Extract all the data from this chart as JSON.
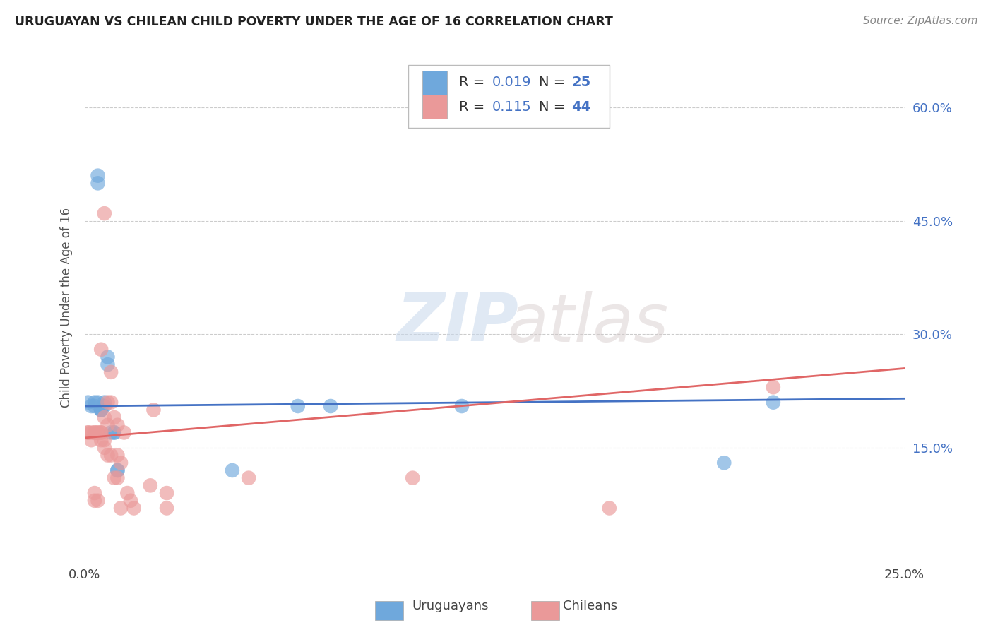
{
  "title": "URUGUAYAN VS CHILEAN CHILD POVERTY UNDER THE AGE OF 16 CORRELATION CHART",
  "source": "Source: ZipAtlas.com",
  "ylabel": "Child Poverty Under the Age of 16",
  "xlim": [
    0.0,
    0.25
  ],
  "ylim": [
    0.0,
    0.67
  ],
  "xticks": [
    0.0,
    0.05,
    0.1,
    0.15,
    0.2,
    0.25
  ],
  "xtick_labels": [
    "0.0%",
    "",
    "",
    "",
    "",
    "25.0%"
  ],
  "yticks_right": [
    0.15,
    0.3,
    0.45,
    0.6
  ],
  "ytick_labels_right": [
    "15.0%",
    "30.0%",
    "45.0%",
    "60.0%"
  ],
  "uruguayan_color": "#6fa8dc",
  "chilean_color": "#ea9999",
  "uruguayan_line_color": "#4472c4",
  "chilean_line_color": "#e06666",
  "legend_R_uruguayan": "0.019",
  "legend_N_uruguayan": "25",
  "legend_R_chilean": "0.115",
  "legend_N_chilean": "44",
  "uruguayan_x": [
    0.001,
    0.002,
    0.003,
    0.003,
    0.004,
    0.004,
    0.004,
    0.005,
    0.005,
    0.005,
    0.006,
    0.006,
    0.007,
    0.007,
    0.008,
    0.009,
    0.009,
    0.01,
    0.01,
    0.045,
    0.065,
    0.075,
    0.115,
    0.195,
    0.21
  ],
  "uruguayan_y": [
    0.21,
    0.205,
    0.205,
    0.21,
    0.21,
    0.5,
    0.51,
    0.2,
    0.2,
    0.2,
    0.205,
    0.21,
    0.26,
    0.27,
    0.17,
    0.17,
    0.17,
    0.12,
    0.12,
    0.12,
    0.205,
    0.205,
    0.205,
    0.13,
    0.21
  ],
  "chilean_x": [
    0.001,
    0.001,
    0.002,
    0.002,
    0.003,
    0.003,
    0.003,
    0.003,
    0.004,
    0.004,
    0.004,
    0.005,
    0.005,
    0.005,
    0.005,
    0.006,
    0.006,
    0.006,
    0.006,
    0.007,
    0.007,
    0.007,
    0.008,
    0.008,
    0.008,
    0.009,
    0.009,
    0.01,
    0.01,
    0.01,
    0.011,
    0.011,
    0.012,
    0.013,
    0.014,
    0.015,
    0.02,
    0.021,
    0.025,
    0.025,
    0.05,
    0.1,
    0.16,
    0.21
  ],
  "chilean_y": [
    0.17,
    0.17,
    0.17,
    0.16,
    0.17,
    0.17,
    0.09,
    0.08,
    0.08,
    0.17,
    0.17,
    0.28,
    0.17,
    0.17,
    0.16,
    0.19,
    0.46,
    0.16,
    0.15,
    0.21,
    0.18,
    0.14,
    0.25,
    0.21,
    0.14,
    0.11,
    0.19,
    0.14,
    0.11,
    0.18,
    0.13,
    0.07,
    0.17,
    0.09,
    0.08,
    0.07,
    0.1,
    0.2,
    0.07,
    0.09,
    0.11,
    0.11,
    0.07,
    0.23
  ],
  "watermark_zip": "ZIP",
  "watermark_atlas": "atlas",
  "background_color": "#ffffff",
  "grid_color": "#cccccc"
}
